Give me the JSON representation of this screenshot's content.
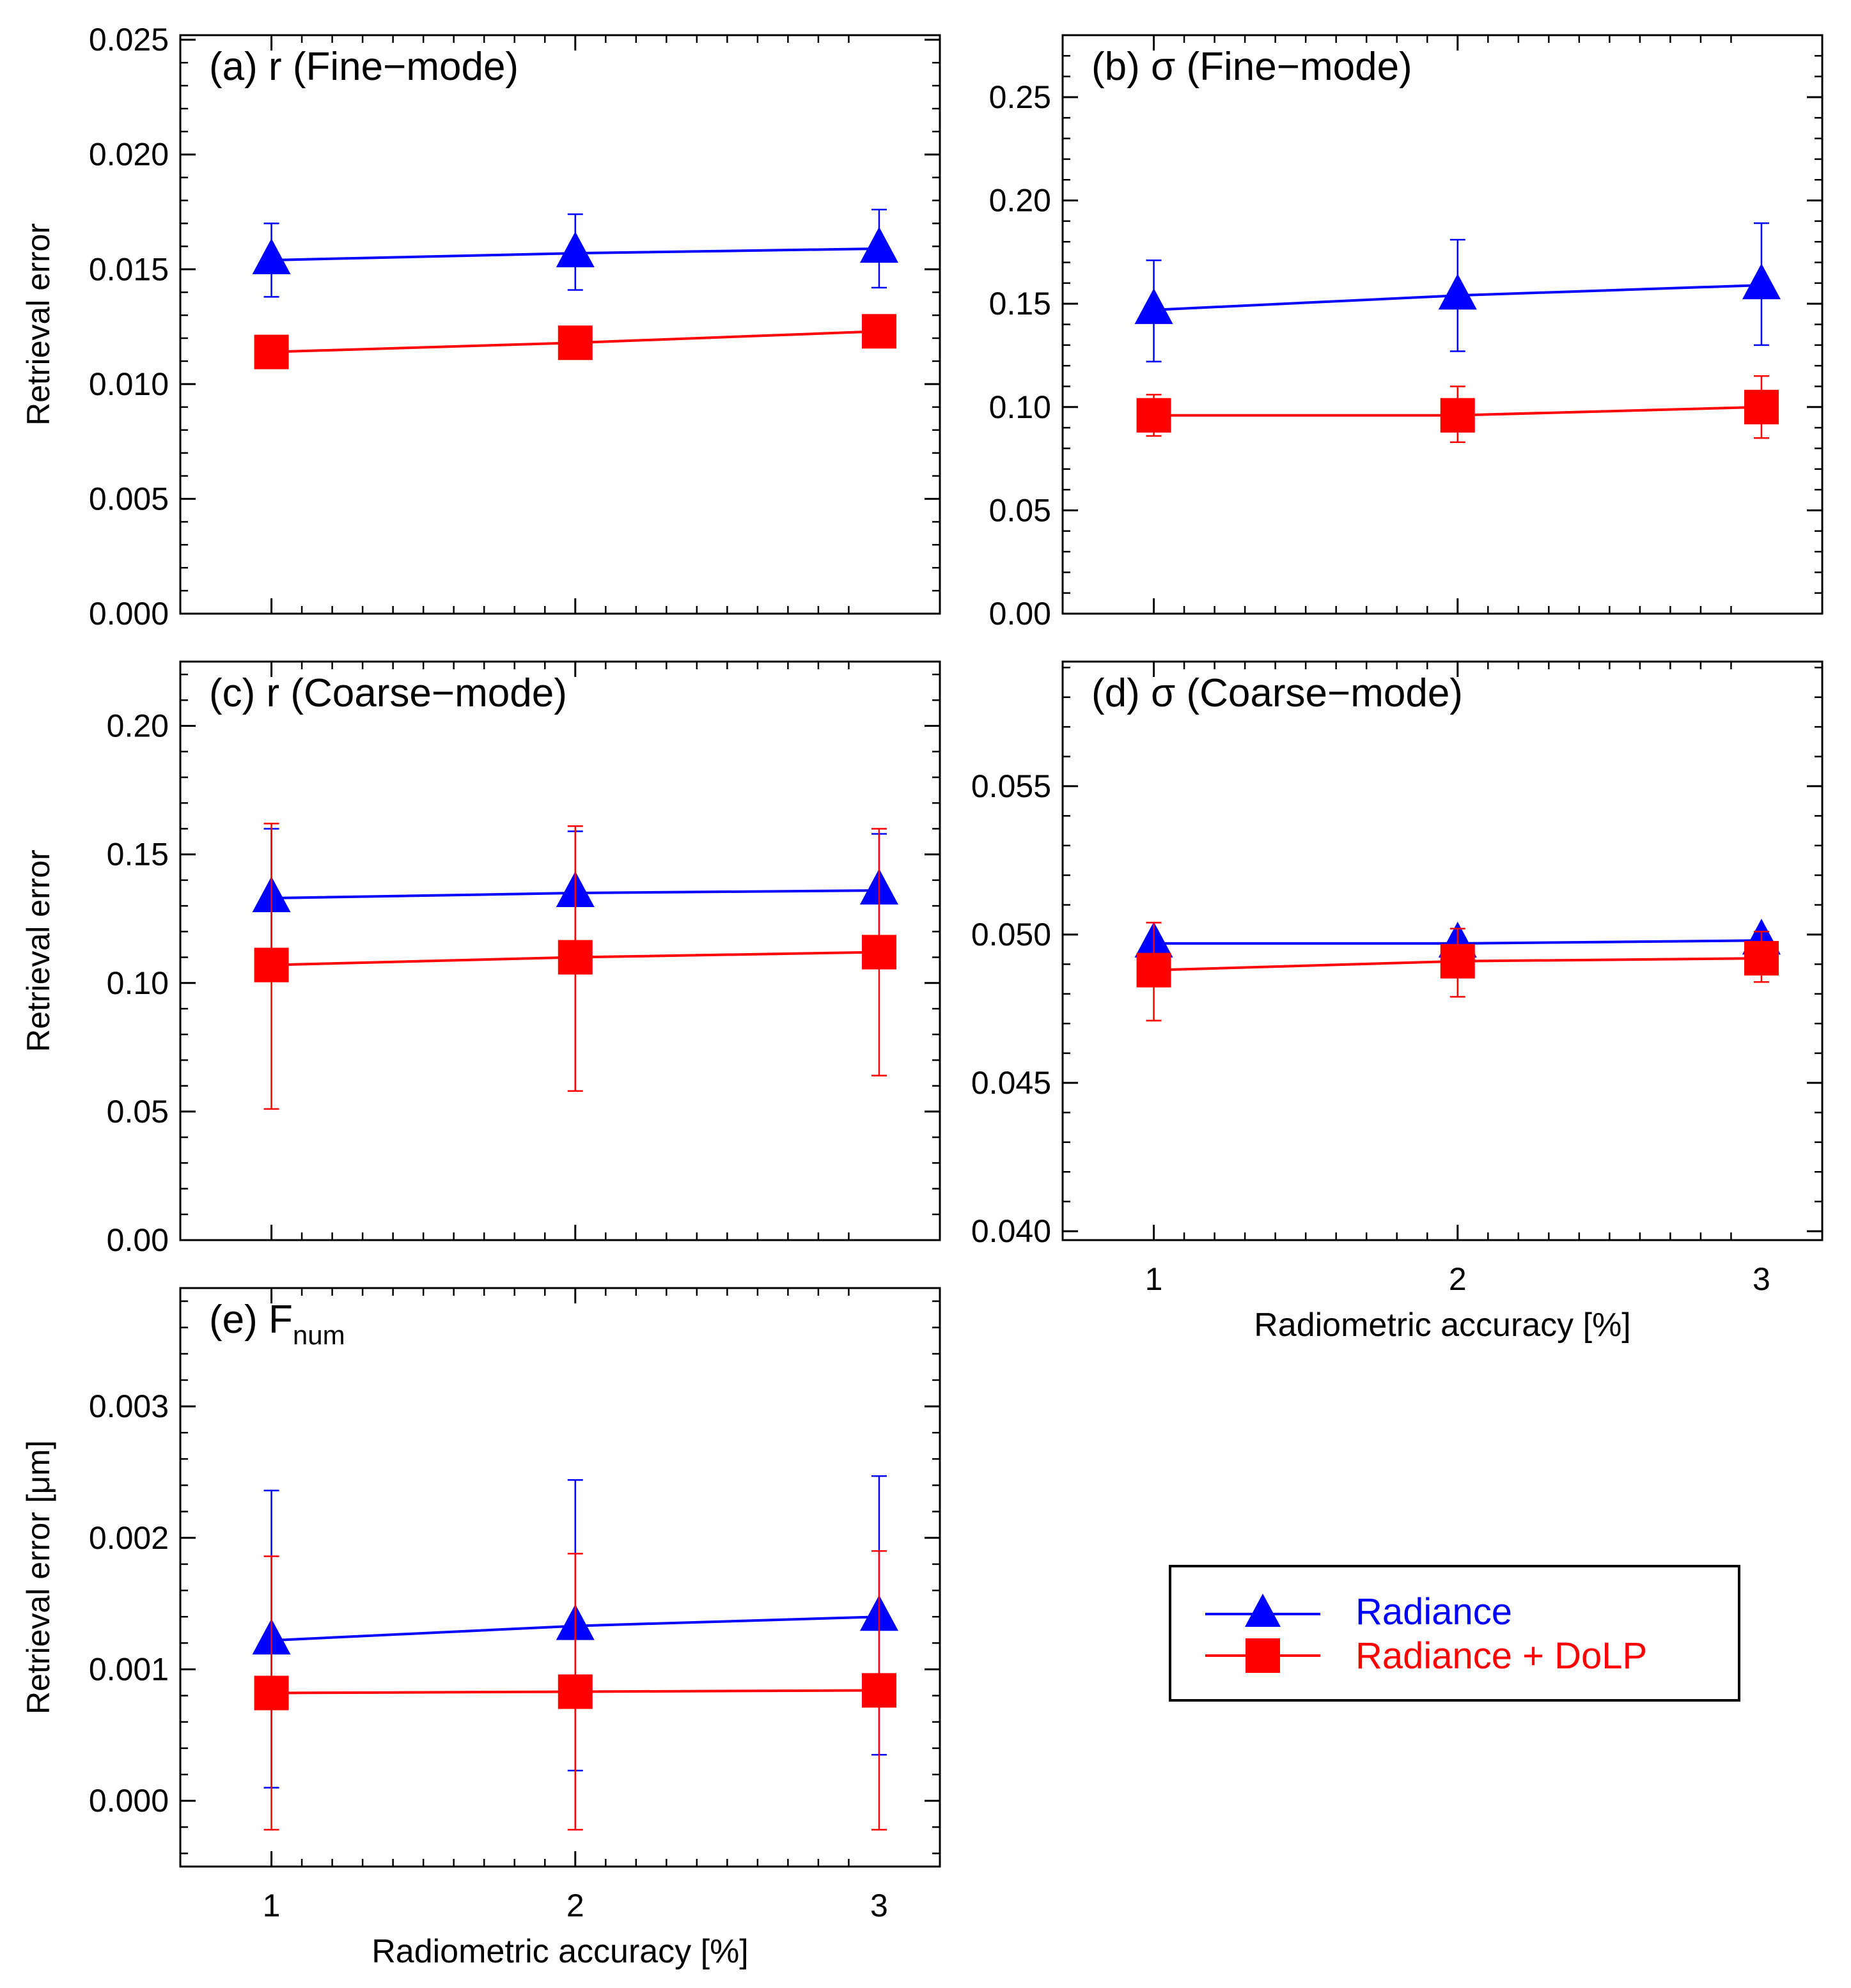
{
  "figure": {
    "series_names": [
      "Radiance",
      "Radiance + DoLP"
    ],
    "legend": {
      "position": "bottom-right",
      "entries": [
        {
          "label": "Radiance",
          "color": "#0000ff",
          "marker": "triangle"
        },
        {
          "label": "Radiance + DoLP",
          "color": "#ff0000",
          "marker": "square"
        }
      ]
    }
  },
  "chart_data": [
    {
      "id": "a",
      "type": "line",
      "title": "(a) r (Fine−mode)",
      "title_sub": "",
      "xlabel": "",
      "ylabel": "Retrieval error",
      "categories": [
        "1",
        "2",
        "3"
      ],
      "x": [
        1,
        2,
        3
      ],
      "xlim": [
        0.7,
        3.2
      ],
      "ylim": [
        0,
        0.0252
      ],
      "yticks": [
        0.0,
        0.005,
        0.01,
        0.015,
        0.02,
        0.025
      ],
      "ytick_labels": [
        "0.000",
        "0.005",
        "0.010",
        "0.015",
        "0.020",
        "0.025"
      ],
      "series": [
        {
          "name": "Radiance",
          "color": "#0000ff",
          "marker": "triangle",
          "values": [
            0.0154,
            0.0157,
            0.0159
          ],
          "err_low": [
            0.0138,
            0.0141,
            0.0142
          ],
          "err_high": [
            0.017,
            0.0174,
            0.0176
          ]
        },
        {
          "name": "Radiance + DoLP",
          "color": "#ff0000",
          "marker": "square",
          "values": [
            0.0114,
            0.0118,
            0.0123
          ],
          "err_low": [
            0.0114,
            0.0118,
            0.0123
          ],
          "err_high": [
            0.0114,
            0.0118,
            0.0123
          ]
        }
      ]
    },
    {
      "id": "b",
      "type": "line",
      "title": "(b) σ (Fine−mode)",
      "title_sub": "",
      "xlabel": "",
      "ylabel": "",
      "categories": [
        "1",
        "2",
        "3"
      ],
      "x": [
        1,
        2,
        3
      ],
      "xlim": [
        0.7,
        3.2
      ],
      "ylim": [
        0,
        0.28
      ],
      "yticks": [
        0.0,
        0.05,
        0.1,
        0.15,
        0.2,
        0.25
      ],
      "ytick_labels": [
        "0.00",
        "0.05",
        "0.10",
        "0.15",
        "0.20",
        "0.25"
      ],
      "series": [
        {
          "name": "Radiance",
          "color": "#0000ff",
          "marker": "triangle",
          "values": [
            0.147,
            0.154,
            0.159
          ],
          "err_low": [
            0.122,
            0.127,
            0.13
          ],
          "err_high": [
            0.171,
            0.181,
            0.189
          ]
        },
        {
          "name": "Radiance + DoLP",
          "color": "#ff0000",
          "marker": "square",
          "values": [
            0.096,
            0.096,
            0.1
          ],
          "err_low": [
            0.086,
            0.083,
            0.085
          ],
          "err_high": [
            0.106,
            0.11,
            0.115
          ]
        }
      ]
    },
    {
      "id": "c",
      "type": "line",
      "title": "(c) r (Coarse−mode)",
      "title_sub": "",
      "xlabel": "",
      "ylabel": "Retrieval error",
      "categories": [
        "1",
        "2",
        "3"
      ],
      "x": [
        1,
        2,
        3
      ],
      "xlim": [
        0.7,
        3.2
      ],
      "ylim": [
        0,
        0.225
      ],
      "yticks": [
        0.0,
        0.05,
        0.1,
        0.15,
        0.2
      ],
      "ytick_labels": [
        "0.00",
        "0.05",
        "0.10",
        "0.15",
        "0.20"
      ],
      "series": [
        {
          "name": "Radiance",
          "color": "#0000ff",
          "marker": "triangle",
          "values": [
            0.133,
            0.135,
            0.136
          ],
          "err_low": [
            0.106,
            0.11,
            0.113
          ],
          "err_high": [
            0.16,
            0.159,
            0.158
          ]
        },
        {
          "name": "Radiance + DoLP",
          "color": "#ff0000",
          "marker": "square",
          "values": [
            0.107,
            0.11,
            0.112
          ],
          "err_low": [
            0.051,
            0.058,
            0.064
          ],
          "err_high": [
            0.162,
            0.161,
            0.16
          ]
        }
      ]
    },
    {
      "id": "d",
      "type": "line",
      "title": "(d) σ (Coarse−mode)",
      "title_sub": "",
      "xlabel": "Radiometric accuracy [%]",
      "ylabel": "",
      "categories": [
        "1",
        "2",
        "3"
      ],
      "x": [
        1,
        2,
        3
      ],
      "xlim": [
        0.7,
        3.2
      ],
      "ylim": [
        0.0397,
        0.0592
      ],
      "yticks": [
        0.04,
        0.045,
        0.05,
        0.055
      ],
      "ytick_labels": [
        "0.040",
        "0.045",
        "0.050",
        "0.055"
      ],
      "series": [
        {
          "name": "Radiance",
          "color": "#0000ff",
          "marker": "triangle",
          "values": [
            0.0497,
            0.0497,
            0.0498
          ],
          "err_low": [
            0.0497,
            0.0497,
            0.0498
          ],
          "err_high": [
            0.0497,
            0.0497,
            0.0498
          ]
        },
        {
          "name": "Radiance + DoLP",
          "color": "#ff0000",
          "marker": "square",
          "values": [
            0.0488,
            0.0491,
            0.0492
          ],
          "err_low": [
            0.0471,
            0.0479,
            0.0484
          ],
          "err_high": [
            0.0504,
            0.0502,
            0.0501
          ]
        }
      ]
    },
    {
      "id": "e",
      "type": "line",
      "title": "(e) F",
      "title_sub": "num",
      "xlabel": "Radiometric accuracy [%]",
      "ylabel": "Retrieval error [μm]",
      "categories": [
        "1",
        "2",
        "3"
      ],
      "x": [
        1,
        2,
        3
      ],
      "xlim": [
        0.7,
        3.2
      ],
      "ylim": [
        -0.0005,
        0.0039
      ],
      "yticks": [
        0.0,
        0.001,
        0.002,
        0.003
      ],
      "ytick_labels": [
        "0.000",
        "0.001",
        "0.002",
        "0.003"
      ],
      "series": [
        {
          "name": "Radiance",
          "color": "#0000ff",
          "marker": "triangle",
          "values": [
            0.00122,
            0.00133,
            0.0014
          ],
          "err_low": [
            0.0001,
            0.00023,
            0.00035
          ],
          "err_high": [
            0.00236,
            0.00244,
            0.00247
          ]
        },
        {
          "name": "Radiance + DoLP",
          "color": "#ff0000",
          "marker": "square",
          "values": [
            0.00082,
            0.00083,
            0.00084
          ],
          "err_low": [
            -0.00022,
            -0.00022,
            -0.00022
          ],
          "err_high": [
            0.00186,
            0.00188,
            0.0019
          ]
        }
      ]
    }
  ]
}
